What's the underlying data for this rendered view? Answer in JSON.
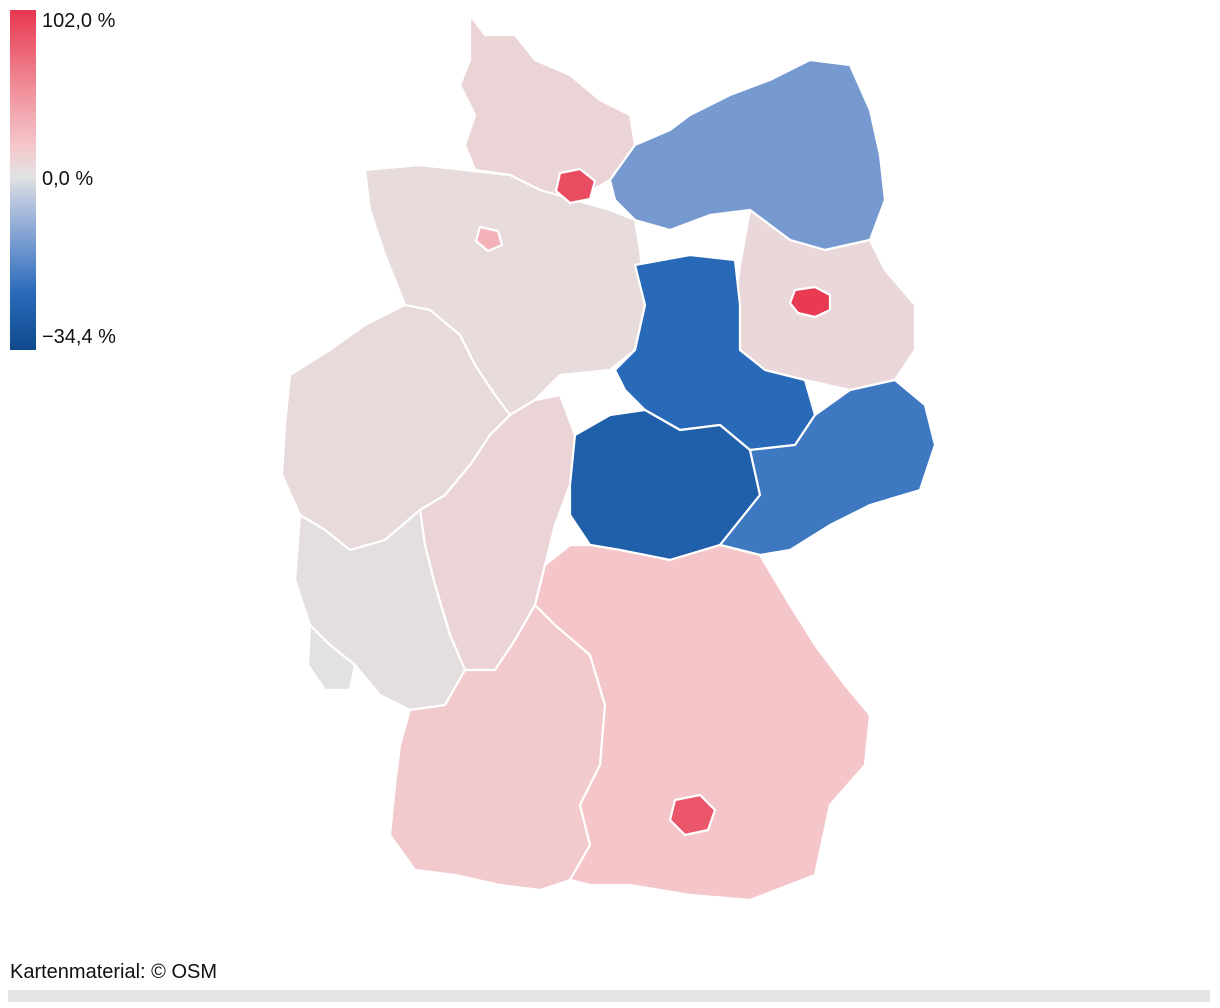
{
  "legend": {
    "max_label": "102,0 %",
    "mid_label": "0,0 %",
    "min_label": "−34,4 %",
    "max_value": 102.0,
    "mid_value": 0.0,
    "min_value": -34.4,
    "colors": {
      "max": "#e83750",
      "high": "#f08a96",
      "light_high": "#f4c7cb",
      "neutral": "#e2e2e2",
      "light_low": "#b9c6de",
      "low": "#6f96cf",
      "mid_low": "#2a6bbb",
      "min": "#0f4a8c"
    }
  },
  "map": {
    "region_values": {
      "schleswig_holstein": 8,
      "hamburg": 90,
      "mecklenburg_vorpommern": -18,
      "brandenburg": 6,
      "berlin": 100,
      "niedersachsen": 4,
      "bremen": 30,
      "sachsen_anhalt": -28,
      "nordrhein_westfalen": 5,
      "hessen": 8,
      "thueringen": -30,
      "sachsen": -25,
      "rheinland_pfalz": 2,
      "saarland": 0,
      "baden_wuerttemberg": 14,
      "bayern": 16,
      "muenchen": 85
    }
  },
  "footer": {
    "credit": "Kartenmaterial: © OSM"
  }
}
